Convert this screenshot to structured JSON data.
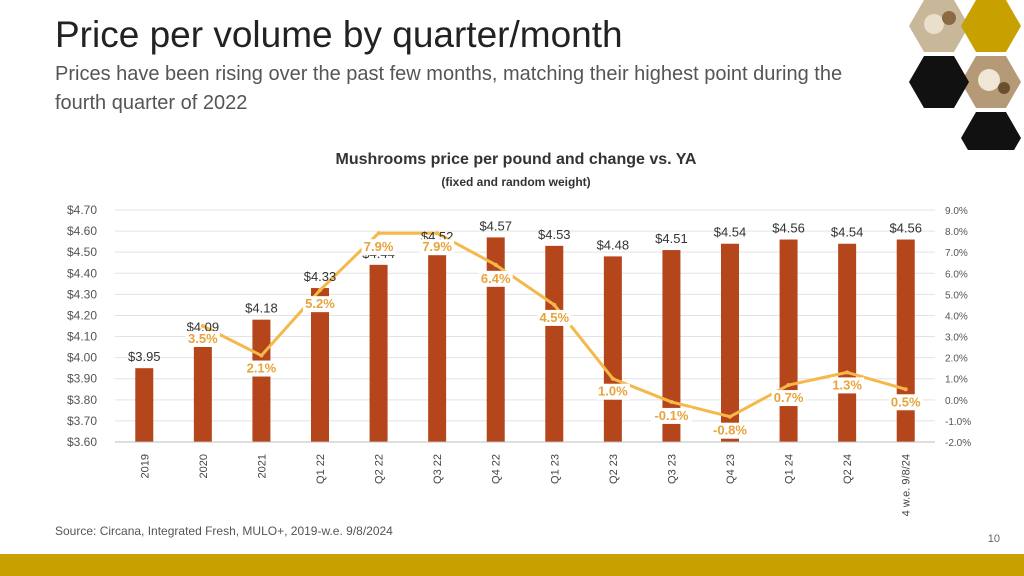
{
  "header": {
    "title": "Price per volume by quarter/month",
    "subtitle": "Prices have been rising over the past few months, matching their highest point during the fourth quarter of 2022"
  },
  "footer": {
    "source": "Source: Circana, Integrated Fresh, MULO+, 2019-w.e. 9/8/2024",
    "page_number": "10"
  },
  "colors": {
    "bar": "#b5451b",
    "line": "#f5b94a",
    "label_pct": "#e8a33a",
    "brand_gold": "#c8a000"
  },
  "chart_data": {
    "type": "bar+line",
    "title": "Mushrooms price per pound and change vs. YA",
    "subtitle": "(fixed and random weight)",
    "categories": [
      "2019",
      "2020",
      "2021",
      "Q1 22",
      "Q2 22",
      "Q3 22",
      "Q4 22",
      "Q1 23",
      "Q2 23",
      "Q3 23",
      "Q4 23",
      "Q1 24",
      "Q2 24",
      "4 w.e. 9/8/24"
    ],
    "series": [
      {
        "name": "Price per pound",
        "axis": "left",
        "kind": "bar",
        "values": [
          3.95,
          4.09,
          4.18,
          4.33,
          4.44,
          4.52,
          4.57,
          4.53,
          4.48,
          4.51,
          4.54,
          4.56,
          4.54,
          4.56
        ],
        "labels": [
          "$3.95",
          "$4.09",
          "$4.18",
          "$4.33",
          "$4.44",
          "$4.52",
          "$4.57",
          "$4.53",
          "$4.48",
          "$4.51",
          "$4.54",
          "$4.56",
          "$4.54",
          "$4.56"
        ]
      },
      {
        "name": "Change vs. YA",
        "axis": "right",
        "kind": "line",
        "values": [
          null,
          3.5,
          2.1,
          5.2,
          7.9,
          7.9,
          6.4,
          4.5,
          1.0,
          -0.1,
          -0.8,
          0.7,
          1.3,
          0.5
        ],
        "labels": [
          "",
          "3.5%",
          "2.1%",
          "5.2%",
          "7.9%",
          "7.9%",
          "6.4%",
          "4.5%",
          "1.0%",
          "-0.1%",
          "-0.8%",
          "0.7%",
          "1.3%",
          "0.5%"
        ]
      }
    ],
    "y_left": {
      "min": 3.6,
      "max": 4.7,
      "ticks": [
        "$3.60",
        "$3.70",
        "$3.80",
        "$3.90",
        "$4.00",
        "$4.10",
        "$4.20",
        "$4.30",
        "$4.40",
        "$4.50",
        "$4.60",
        "$4.70"
      ]
    },
    "y_right": {
      "min": -2.0,
      "max": 9.0,
      "ticks": [
        "-2.0%",
        "-1.0%",
        "0.0%",
        "1.0%",
        "2.0%",
        "3.0%",
        "4.0%",
        "5.0%",
        "6.0%",
        "7.0%",
        "8.0%",
        "9.0%"
      ]
    },
    "grid": true
  }
}
